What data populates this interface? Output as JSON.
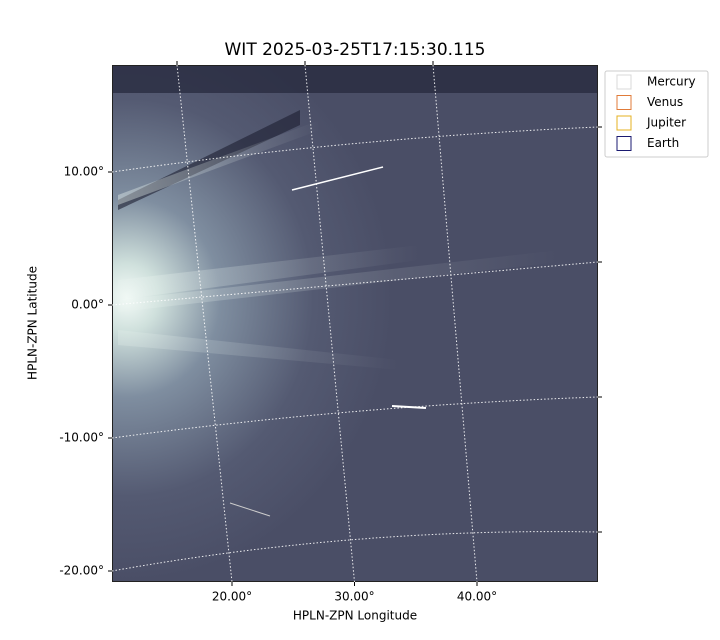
{
  "chart_data": {
    "type": "image",
    "title": "WIT 2025-03-25T17:15:30.115",
    "xlabel": "HPLN-ZPN Longitude",
    "ylabel": "HPLN-ZPN Latitude",
    "xticks": [
      {
        "value": 20,
        "label": "20.00°"
      },
      {
        "value": 30,
        "label": "30.00°"
      },
      {
        "value": 40,
        "label": "40.00°"
      }
    ],
    "yticks": [
      {
        "value": 10,
        "label": "10.00°"
      },
      {
        "value": 0,
        "label": "0.00°"
      },
      {
        "value": -10,
        "label": "-10.00°"
      },
      {
        "value": -20,
        "label": "-20.00°"
      }
    ],
    "grid": true,
    "legend_loc": "upper right outside",
    "legend": [
      {
        "name": "Mercury",
        "color": "#d8d8d8"
      },
      {
        "name": "Venus",
        "color": "#e07b39"
      },
      {
        "name": "Jupiter",
        "color": "#e5b020"
      },
      {
        "name": "Earth",
        "color": "#1a1a70"
      }
    ]
  }
}
